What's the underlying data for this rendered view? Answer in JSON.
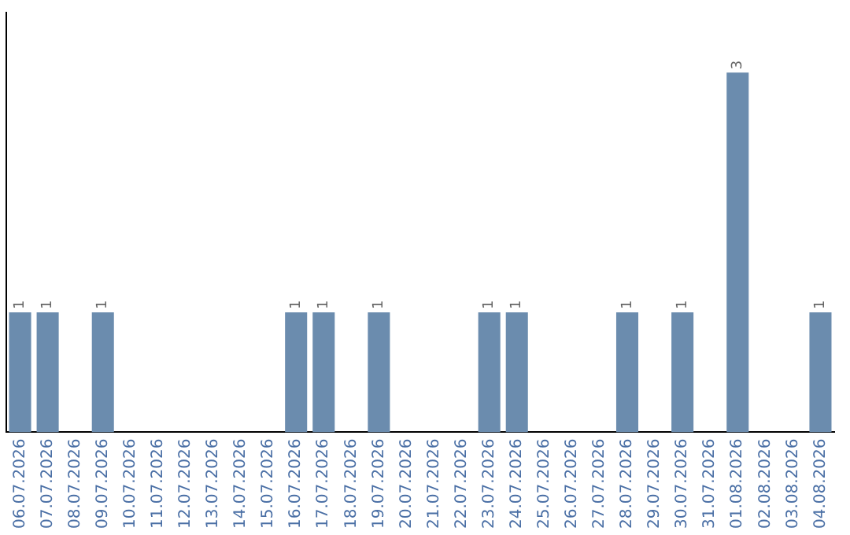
{
  "chart_data": {
    "type": "bar",
    "categories": [
      "06.07.2026",
      "07.07.2026",
      "08.07.2026",
      "09.07.2026",
      "10.07.2026",
      "11.07.2026",
      "12.07.2026",
      "13.07.2026",
      "14.07.2026",
      "15.07.2026",
      "16.07.2026",
      "17.07.2026",
      "18.07.2026",
      "19.07.2026",
      "20.07.2026",
      "21.07.2026",
      "22.07.2026",
      "23.07.2026",
      "24.07.2026",
      "25.07.2026",
      "26.07.2026",
      "27.07.2026",
      "28.07.2026",
      "29.07.2026",
      "30.07.2026",
      "31.07.2026",
      "01.08.2026",
      "02.08.2026",
      "03.08.2026",
      "04.08.2026"
    ],
    "values": [
      1,
      1,
      0,
      1,
      0,
      0,
      0,
      0,
      0,
      0,
      1,
      1,
      0,
      1,
      0,
      0,
      0,
      1,
      1,
      0,
      0,
      0,
      1,
      0,
      1,
      0,
      3,
      0,
      0,
      1
    ],
    "value_labels": [
      "1",
      "1",
      null,
      "1",
      null,
      null,
      null,
      null,
      null,
      null,
      "1",
      "1",
      null,
      "1",
      null,
      null,
      null,
      "1",
      "1",
      null,
      null,
      null,
      "1",
      null,
      "1",
      null,
      "3",
      null,
      null,
      "1"
    ],
    "color": "#6b8cae",
    "grid": false,
    "legend": false,
    "tick_labels": "x"
  }
}
